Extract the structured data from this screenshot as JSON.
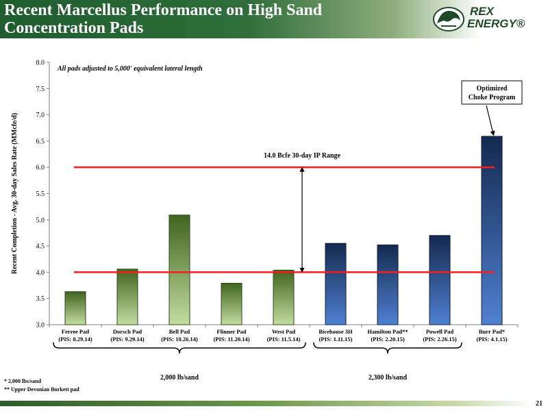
{
  "slide": {
    "title_line1": "Recent Marcellus Performance on High Sand",
    "title_line2": "Concentration Pads",
    "logo_line1": "REX",
    "logo_line2": "ENERGY®",
    "page_number": "21",
    "footnotes": [
      "* 2,000 lbs/sand",
      "** Upper Devonian Burkett pad"
    ]
  },
  "colors": {
    "green_top": "#3f6420",
    "green_bottom": "#c4dca0",
    "blue_top": "#142a50",
    "blue_bottom": "#4f80d0",
    "range_line": "#ff1a1a"
  },
  "chart_data": {
    "type": "bar",
    "ylabel": "Recent Completion - Avg. 30-day Sales Rate (MMcfe/d)",
    "ylim": [
      3.0,
      8.0
    ],
    "yticks": [
      "3.0",
      "3.5",
      "4.0",
      "4.5",
      "5.0",
      "5.5",
      "6.0",
      "6.5",
      "7.0",
      "7.5",
      "8.0"
    ],
    "categories": [
      {
        "name": "Ferree Pad",
        "pis": "(PIS: 8.29.14)"
      },
      {
        "name": "Dorsch Pad",
        "pis": "(PIS: 9.29.14)"
      },
      {
        "name": "Bell Pad",
        "pis": "(PIS: 10.26.14)"
      },
      {
        "name": "Flinner Pad",
        "pis": "(PIS: 11.20.14)"
      },
      {
        "name": "West Pad",
        "pis": "(PIS: 11.5.14)"
      },
      {
        "name": "Bicehouse 3H",
        "pis": "(PIS: 1.11.15)"
      },
      {
        "name": "Hamilton Pad**",
        "pis": "(PIS: 2.20.15)"
      },
      {
        "name": "Powell Pad",
        "pis": "(PIS: 2.26.15)"
      },
      {
        "name": "Burr Pad*",
        "pis": "(PIS: 4.1.15)"
      }
    ],
    "values": [
      3.63,
      4.06,
      5.09,
      3.79,
      4.04,
      4.55,
      4.52,
      4.7,
      6.59
    ],
    "groups": [
      {
        "label": "2,000 lb/sand",
        "first": 0,
        "last": 4,
        "color_key": "green"
      },
      {
        "label": "2,300 lb/sand",
        "first": 5,
        "last": 7,
        "color_key": "blue"
      }
    ],
    "bar_colors": [
      "green",
      "green",
      "green",
      "green",
      "green",
      "blue",
      "blue",
      "blue",
      "blue"
    ],
    "range": {
      "low": 4.0,
      "high": 6.0,
      "label": "14.0 Bcfe 30-day IP Range"
    },
    "annotation_note": "All pads adjusted to 5,000' equivalent lateral length",
    "callout": {
      "line1": "Optimized",
      "line2": "Choke Program",
      "bar_index": 8
    }
  }
}
